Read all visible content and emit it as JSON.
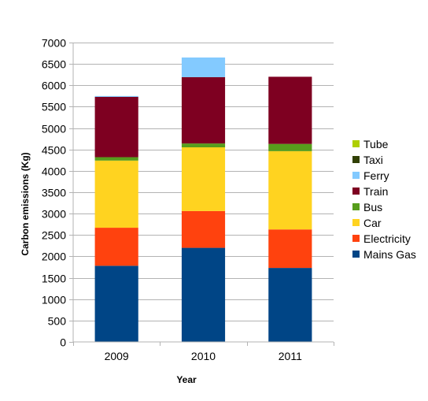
{
  "chart_data": {
    "type": "bar",
    "stacked": true,
    "title": "",
    "xlabel": "Year",
    "ylabel": "Carbon emissions (Kg)",
    "ylim": [
      0,
      7000
    ],
    "ytick_step": 500,
    "grid": true,
    "legend_position": "right",
    "categories": [
      "2009",
      "2010",
      "2011"
    ],
    "series": [
      {
        "name": "Mains Gas",
        "color": "#004586",
        "values": [
          1780,
          2200,
          1730
        ]
      },
      {
        "name": "Electricity",
        "color": "#ff420e",
        "values": [
          890,
          860,
          900
        ]
      },
      {
        "name": "Car",
        "color": "#ffd320",
        "values": [
          1570,
          1490,
          1830
        ]
      },
      {
        "name": "Bus",
        "color": "#579d1c",
        "values": [
          80,
          90,
          170
        ]
      },
      {
        "name": "Train",
        "color": "#7e0021",
        "values": [
          1410,
          1550,
          1570
        ]
      },
      {
        "name": "Ferry",
        "color": "#83caff",
        "values": [
          20,
          460,
          0
        ]
      },
      {
        "name": "Taxi",
        "color": "#314004",
        "values": [
          0,
          0,
          0
        ]
      },
      {
        "name": "Tube",
        "color": "#aecf00",
        "values": [
          0,
          0,
          0
        ]
      }
    ]
  }
}
